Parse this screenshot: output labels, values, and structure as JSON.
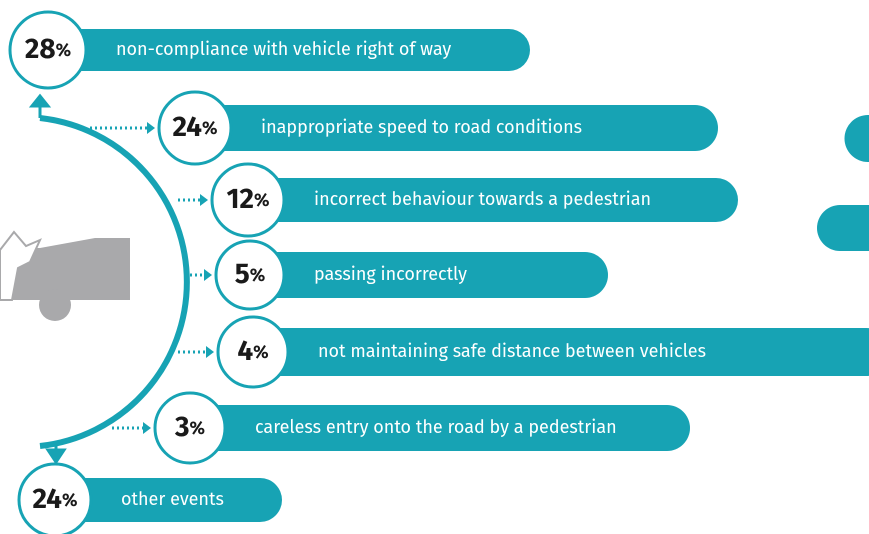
{
  "unit": "%",
  "items": [
    {
      "value": 28,
      "label": "non-compliance with vehicle right of way"
    },
    {
      "value": 24,
      "label": "inappropriate speed to road conditions"
    },
    {
      "value": 12,
      "label": "incorrect behaviour towards a pedestrian"
    },
    {
      "value": 5,
      "label": "passing incorrectly"
    },
    {
      "value": 4,
      "label": "not maintaining safe distance between vehicles"
    },
    {
      "value": 3,
      "label": "careless entry onto the road by a pedestrian"
    },
    {
      "value": 24,
      "label": "other events"
    }
  ]
}
